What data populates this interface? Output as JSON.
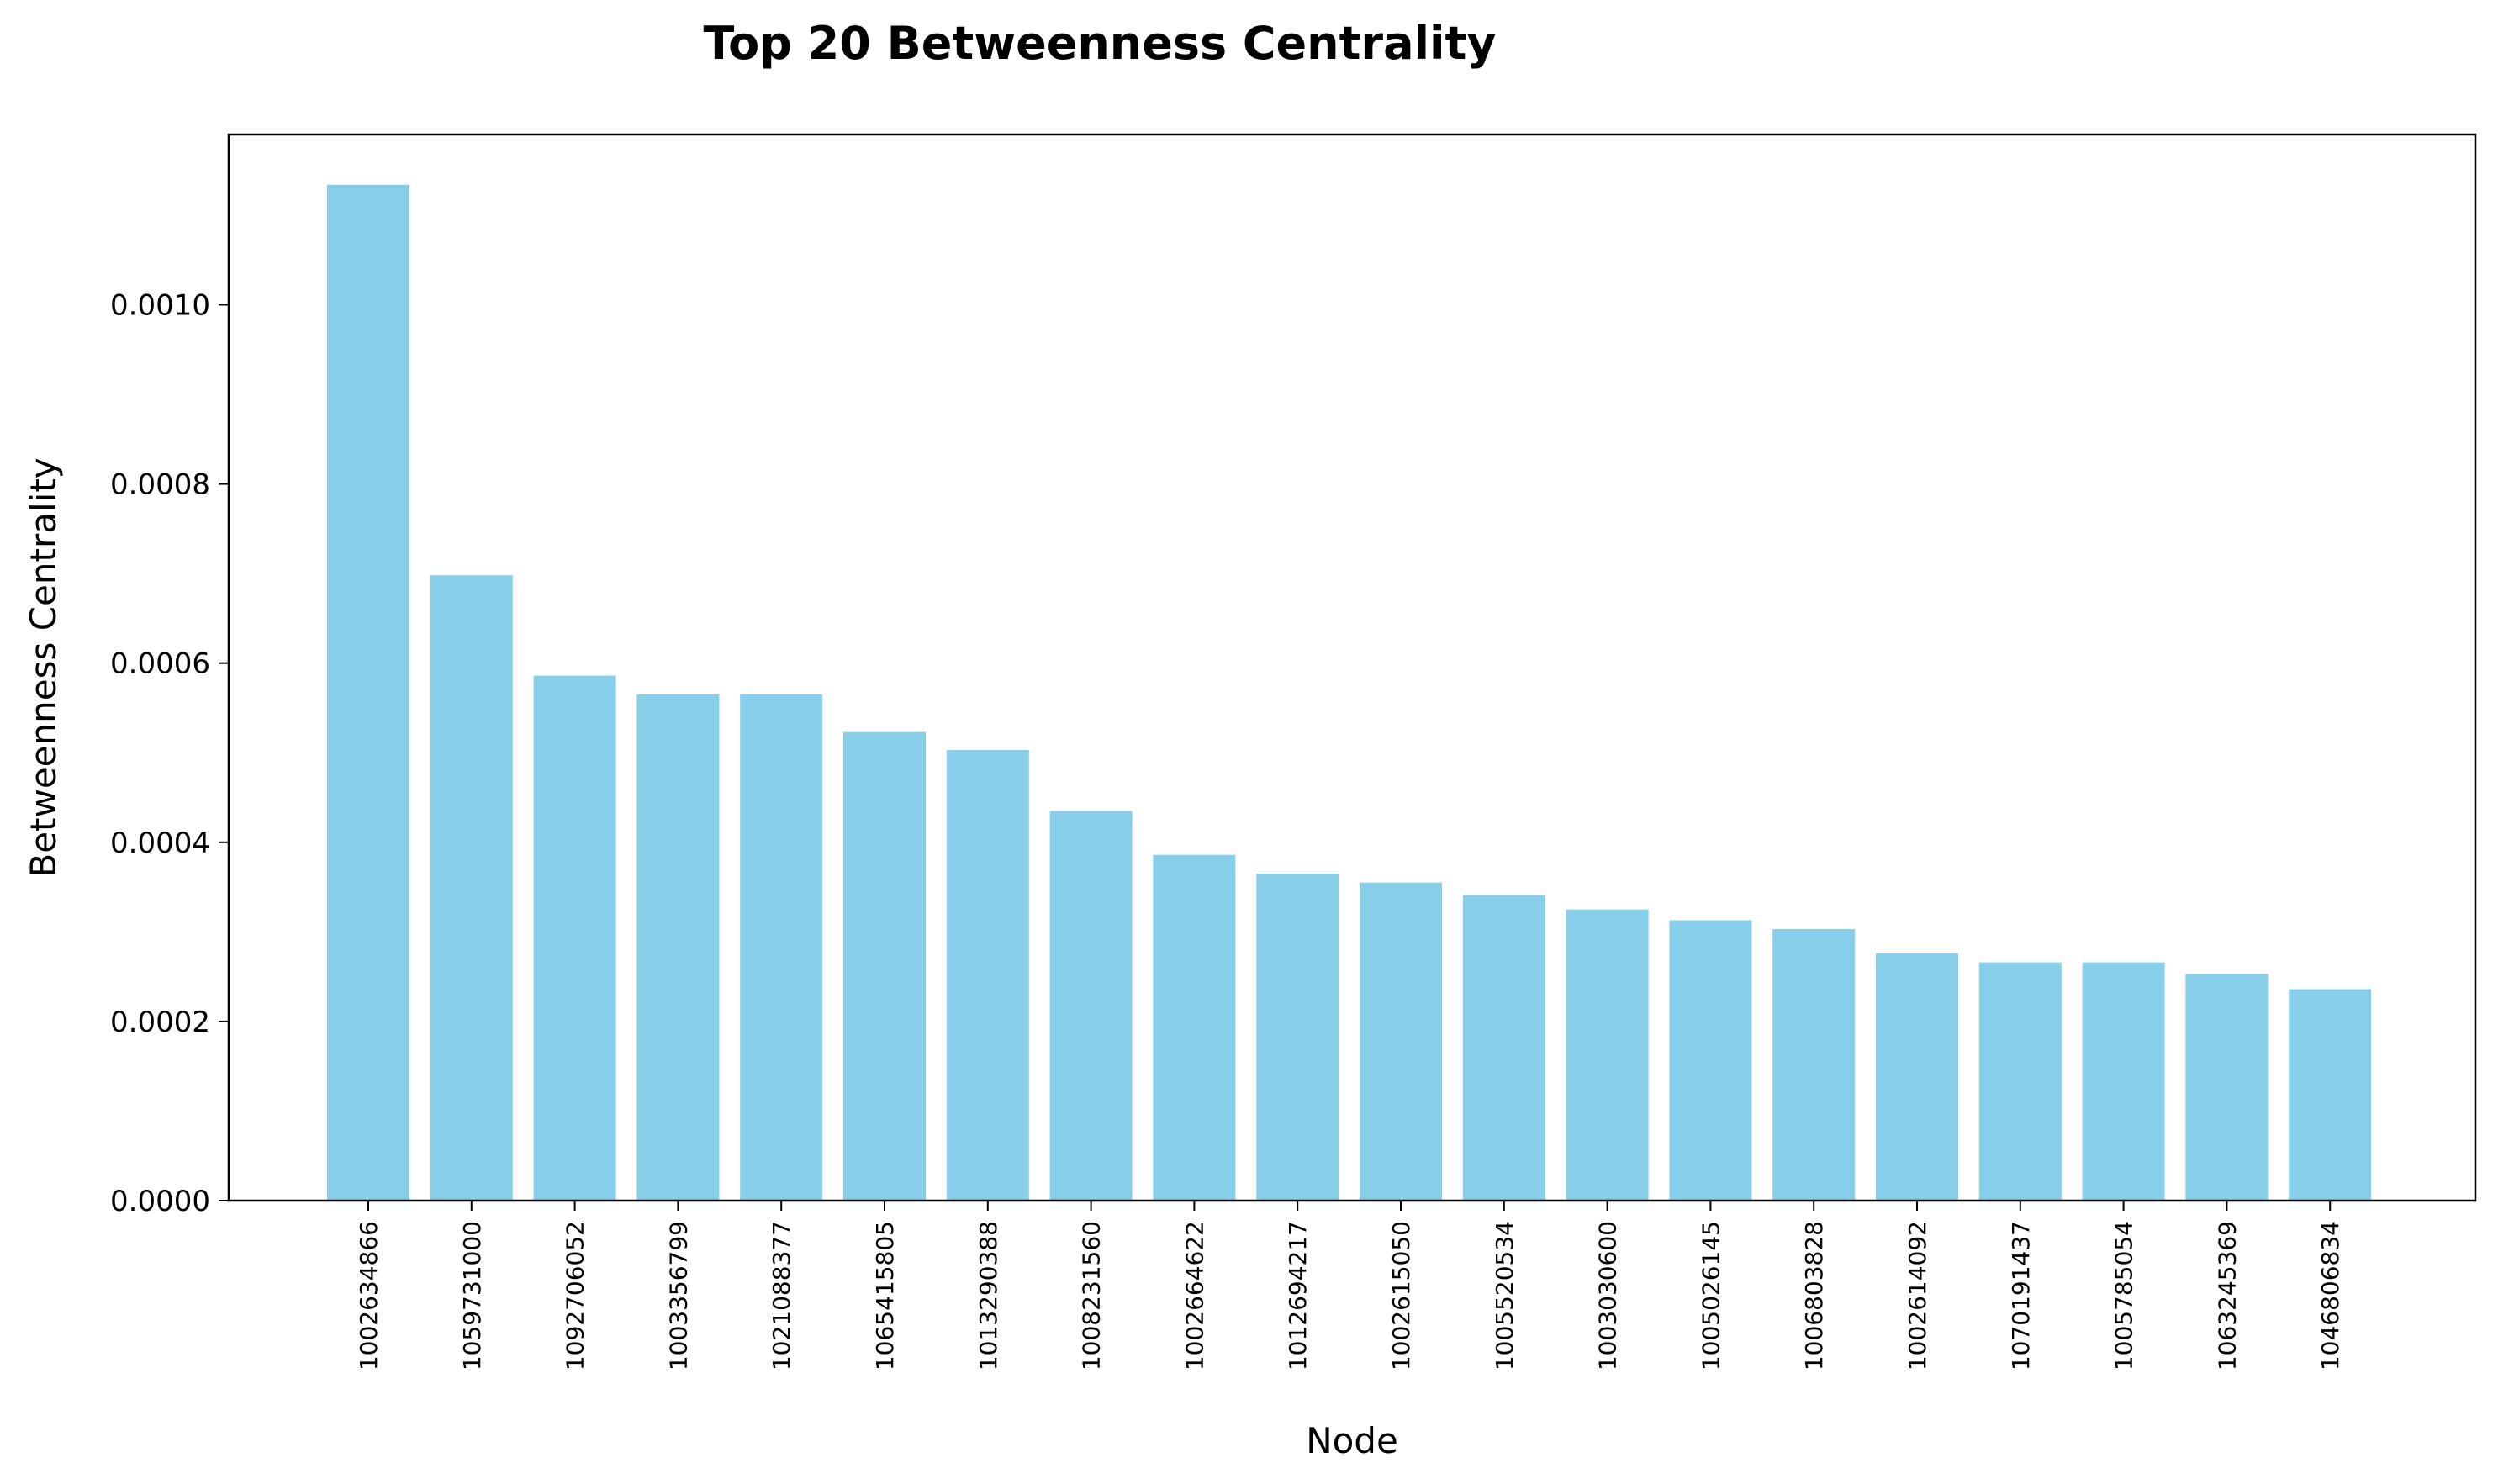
{
  "chart_data": {
    "type": "bar",
    "title": "Top 20 Betweenness Centrality",
    "xlabel": "Node",
    "ylabel": "Betweenness Centrality",
    "ylim": [
      0,
      0.00119
    ],
    "yticks": [
      "0.0000",
      "0.0002",
      "0.0004",
      "0.0006",
      "0.0008",
      "0.0010"
    ],
    "ytick_values": [
      0,
      0.0002,
      0.0004,
      0.0006,
      0.0008,
      0.001
    ],
    "bar_color": "#87CEEB",
    "grid": false,
    "categories": [
      "1002634866",
      "1059731000",
      "1092706052",
      "1003356799",
      "1021088377",
      "1065415805",
      "1013290388",
      "1008231560",
      "1002664622",
      "1012694217",
      "1002615050",
      "1005520534",
      "1003030600",
      "1005026145",
      "1006803828",
      "1002614092",
      "1070191437",
      "1005785054",
      "1063245369",
      "1046806834"
    ],
    "values": [
      0.001134,
      0.000698,
      0.000586,
      0.000565,
      0.000565,
      0.000523,
      0.000503,
      0.000435,
      0.000386,
      0.000365,
      0.000355,
      0.000341,
      0.000325,
      0.000313,
      0.000303,
      0.000276,
      0.000266,
      0.000266,
      0.000253,
      0.000236
    ]
  }
}
